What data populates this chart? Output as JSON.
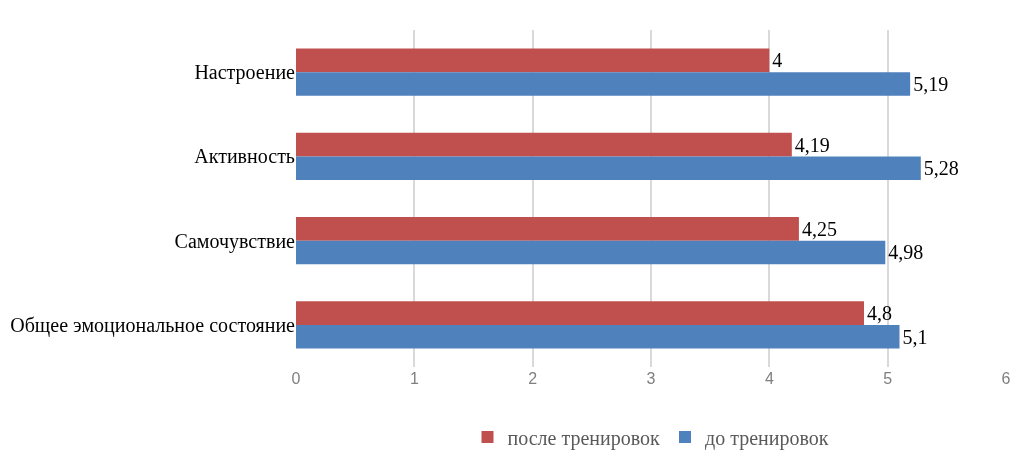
{
  "chart_data": {
    "type": "bar",
    "orientation": "horizontal",
    "categories": [
      "Настроение",
      "Активность",
      "Самочувствие",
      "Общее эмоциональное состояние"
    ],
    "series": [
      {
        "name": "после тренировок",
        "color": "#c0504d",
        "values": [
          4,
          4.19,
          4.25,
          4.8
        ],
        "value_labels": [
          "4",
          "4,19",
          "4,25",
          "4,8"
        ]
      },
      {
        "name": "до тренировок",
        "color": "#4f81bd",
        "values": [
          5.19,
          5.28,
          4.98,
          5.1
        ],
        "value_labels": [
          "5,19",
          "5,28",
          "4,98",
          "5,1"
        ]
      }
    ],
    "xlim": [
      0,
      6
    ],
    "xticks": [
      0,
      1,
      2,
      3,
      4,
      5,
      6
    ],
    "grid": "x",
    "legend": "bottom"
  }
}
